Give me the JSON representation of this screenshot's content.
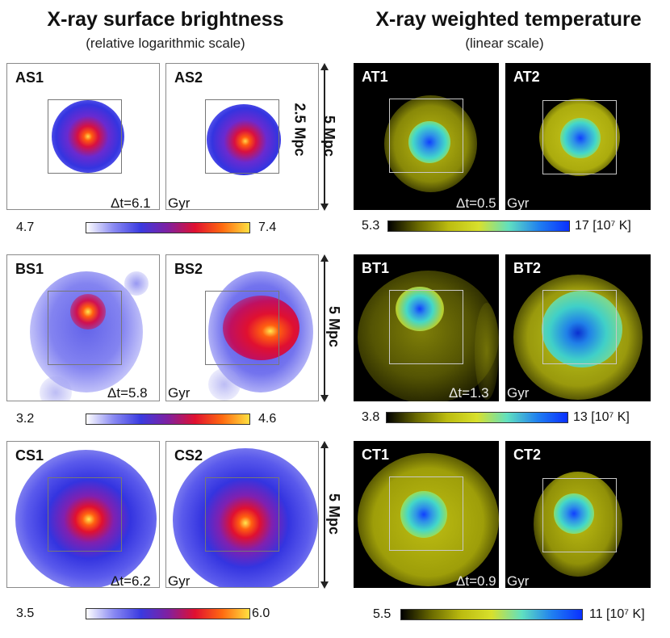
{
  "header": {
    "left_title": "X-ray surface brightness",
    "left_subtitle": "(relative logarithmic scale)",
    "right_title": "X-ray weighted temperature",
    "right_subtitle": "(linear scale)"
  },
  "rows": {
    "a": {
      "s1": "AS1",
      "s2": "AS2",
      "t1": "AT1",
      "t2": "AT2",
      "scale_small": "2.5 Mpc",
      "scale_large": "5 Mpc",
      "s_dt": "Δt=6.1",
      "s_unit": "Gyr",
      "t_dt": "Δt=0.5",
      "t_unit": "Gyr",
      "s_min": "4.7",
      "s_max": "7.4",
      "t_min": "5.3",
      "t_max": "17 [10⁷ K]"
    },
    "b": {
      "s1": "BS1",
      "s2": "BS2",
      "t1": "BT1",
      "t2": "BT2",
      "scale_large": "5 Mpc",
      "s_dt": "Δt=5.8",
      "s_unit": "Gyr",
      "t_dt": "Δt=1.3",
      "t_unit": "Gyr",
      "s_min": "3.2",
      "s_max": "4.6",
      "t_min": "3.8",
      "t_max": "13 [10⁷ K]"
    },
    "c": {
      "s1": "CS1",
      "s2": "CS2",
      "t1": "CT1",
      "t2": "CT2",
      "scale_large": "5 Mpc",
      "s_dt": "Δt=6.2",
      "s_unit": "Gyr",
      "t_dt": "Δt=0.9",
      "t_unit": "Gyr",
      "s_min": "3.5",
      "s_max": "6.0",
      "t_min": "5.5",
      "t_max": "11 [10⁷ K]"
    }
  },
  "colors": {
    "brightness_map": [
      "#ffffff",
      "#6a6af0",
      "#3a3ae0",
      "#e01030",
      "#ffcc20",
      "#ffffa0"
    ],
    "temperature_map": [
      "#000000",
      "#bcbc10",
      "#d8e02c",
      "#40e0d0",
      "#1050ff"
    ]
  }
}
